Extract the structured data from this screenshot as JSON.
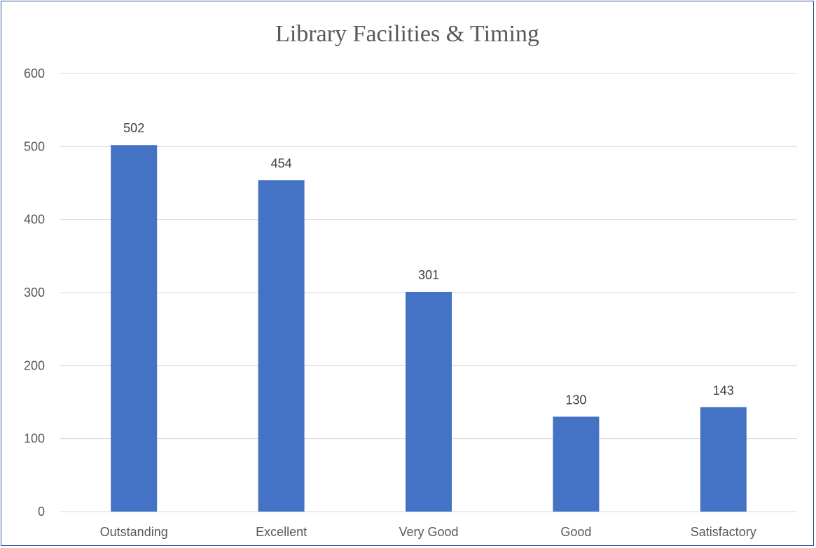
{
  "chart_data": {
    "type": "bar",
    "title": "Library Facilities & Timing",
    "categories": [
      "Outstanding",
      "Excellent",
      "Very Good",
      "Good",
      "Satisfactory"
    ],
    "values": [
      502,
      454,
      301,
      130,
      143
    ],
    "ylim": [
      0,
      600
    ],
    "yticks": [
      0,
      100,
      200,
      300,
      400,
      500,
      600
    ],
    "xlabel": "",
    "ylabel": "",
    "grid": true,
    "legend": "none",
    "bar_color": "#4472c4",
    "show_data_labels": true
  }
}
